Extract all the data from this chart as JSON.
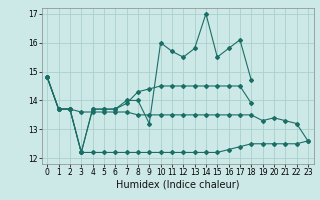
{
  "title": "",
  "xlabel": "Humidex (Indice chaleur)",
  "ylabel": "",
  "xlim": [
    -0.5,
    23.5
  ],
  "ylim": [
    11.8,
    17.2
  ],
  "yticks": [
    12,
    13,
    14,
    15,
    16,
    17
  ],
  "xticks": [
    0,
    1,
    2,
    3,
    4,
    5,
    6,
    7,
    8,
    9,
    10,
    11,
    12,
    13,
    14,
    15,
    16,
    17,
    18,
    19,
    20,
    21,
    22,
    23
  ],
  "bg_color": "#cce9e7",
  "grid_color": "#aacfcd",
  "line_color": "#1a6e65",
  "series": [
    [
      14.8,
      13.7,
      13.7,
      12.2,
      13.7,
      13.7,
      13.7,
      14.0,
      14.0,
      13.2,
      16.0,
      15.7,
      15.5,
      15.8,
      17.0,
      15.5,
      15.8,
      16.1,
      14.7,
      null,
      null,
      null,
      null,
      null
    ],
    [
      14.8,
      13.7,
      13.7,
      12.2,
      13.7,
      13.7,
      13.7,
      13.9,
      14.3,
      14.4,
      14.5,
      14.5,
      14.5,
      14.5,
      14.5,
      14.5,
      14.5,
      14.5,
      13.9,
      null,
      null,
      null,
      null,
      null
    ],
    [
      14.8,
      13.7,
      13.7,
      13.6,
      13.6,
      13.6,
      13.6,
      13.6,
      13.5,
      13.5,
      13.5,
      13.5,
      13.5,
      13.5,
      13.5,
      13.5,
      13.5,
      13.5,
      13.5,
      13.3,
      13.4,
      13.3,
      13.2,
      12.6
    ],
    [
      14.8,
      13.7,
      13.7,
      12.2,
      12.2,
      12.2,
      12.2,
      12.2,
      12.2,
      12.2,
      12.2,
      12.2,
      12.2,
      12.2,
      12.2,
      12.2,
      12.3,
      12.4,
      12.5,
      12.5,
      12.5,
      12.5,
      12.5,
      12.6
    ]
  ],
  "marker": "D",
  "markersize": 2.0,
  "linewidth": 0.8,
  "xlabel_fontsize": 7,
  "tick_fontsize": 5.5
}
